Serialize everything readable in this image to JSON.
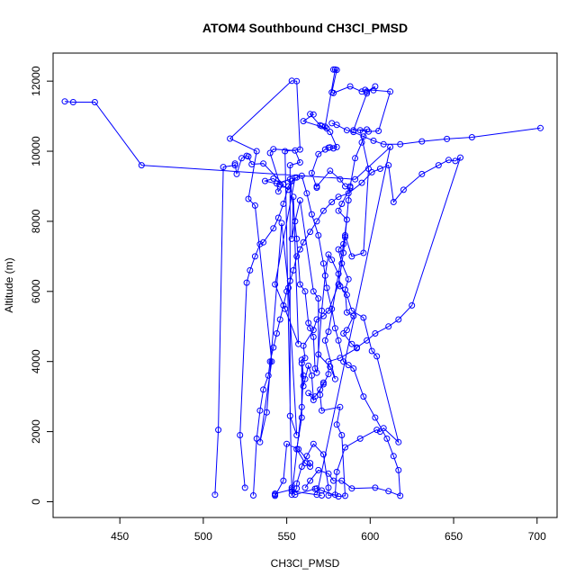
{
  "chart_data": {
    "type": "scatter",
    "title": "ATOM4 Southbound CH3Cl_PMSD",
    "xlabel": "CH3Cl_PMSD",
    "ylabel": "Altitude (m)",
    "xlim": [
      410,
      712
    ],
    "ylim": [
      -450,
      12800
    ],
    "xticks": [
      450,
      500,
      550,
      600,
      650,
      700
    ],
    "yticks": [
      0,
      2000,
      4000,
      6000,
      8000,
      10000,
      12000
    ],
    "grid": false,
    "legend": "none",
    "series_color": "#0000ff",
    "series": [
      {
        "connected": true,
        "points": [
          [
            417,
            11420
          ],
          [
            422,
            11400
          ],
          [
            435,
            11400
          ],
          [
            463,
            9600
          ],
          [
            591,
            9200
          ],
          [
            612,
            10120
          ],
          [
            568,
            200
          ],
          [
            571,
            180
          ],
          [
            553,
            300
          ],
          [
            549,
            10000
          ],
          [
            558,
            10050
          ],
          [
            556,
            12000
          ],
          [
            553,
            12010
          ],
          [
            516,
            10360
          ],
          [
            532,
            10000
          ],
          [
            527,
            8640
          ],
          [
            531,
            8450
          ],
          [
            541,
            4000
          ],
          [
            534,
            1700
          ],
          [
            538,
            2550
          ],
          [
            547,
            7950
          ],
          [
            551,
            6100
          ],
          [
            556,
            1900
          ],
          [
            552,
            2450
          ],
          [
            552,
            9600
          ],
          [
            558,
            9680
          ],
          [
            555,
            10020
          ],
          [
            542,
            10060
          ],
          [
            540,
            9950
          ],
          [
            546,
            9050
          ],
          [
            537,
            9150
          ],
          [
            542,
            9220
          ],
          [
            551,
            8900
          ],
          [
            555,
            9250
          ],
          [
            543,
            6200
          ],
          [
            549,
            5500
          ],
          [
            557,
            4500
          ],
          [
            554,
            8700
          ],
          [
            553,
            7500
          ],
          [
            555,
            8000
          ],
          [
            558,
            8600
          ],
          [
            566,
            6000
          ],
          [
            569,
            5800
          ],
          [
            569,
            4200
          ],
          [
            576,
            3850
          ],
          [
            579,
            3500
          ],
          [
            573,
            4600
          ],
          [
            575,
            4850
          ],
          [
            585,
            7600
          ],
          [
            589,
            7000
          ],
          [
            596,
            7100
          ],
          [
            599,
            9500
          ],
          [
            594,
            10600
          ],
          [
            599,
            10560
          ],
          [
            605,
            10580
          ],
          [
            612,
            11700
          ],
          [
            602,
            11740
          ],
          [
            597,
            11750
          ],
          [
            595,
            11700
          ],
          [
            588,
            11850
          ],
          [
            578,
            11660
          ],
          [
            577,
            11680
          ],
          [
            580,
            12320
          ],
          [
            578,
            12330
          ],
          [
            579,
            12330
          ],
          [
            573,
            10700
          ],
          [
            574,
            10650
          ],
          [
            560,
            10860
          ],
          [
            566,
            11050
          ],
          [
            564,
            11060
          ],
          [
            570,
            10740
          ],
          [
            571,
            10720
          ],
          [
            576,
            10550
          ],
          [
            580,
            10120
          ],
          [
            578,
            10080
          ],
          [
            576,
            10110
          ],
          [
            575,
            10100
          ],
          [
            573,
            10050
          ],
          [
            569,
            9920
          ],
          [
            565,
            9380
          ],
          [
            568,
            8960
          ],
          [
            568,
            9000
          ],
          [
            576,
            9440
          ],
          [
            582,
            9200
          ],
          [
            585,
            9000
          ],
          [
            588,
            8960
          ],
          [
            583,
            8500
          ],
          [
            581,
            8300
          ],
          [
            586,
            8050
          ],
          [
            584,
            7350
          ],
          [
            581,
            7200
          ],
          [
            583,
            6800
          ],
          [
            587,
            6350
          ],
          [
            585,
            6050
          ],
          [
            586,
            5400
          ],
          [
            590,
            5300
          ],
          [
            586,
            4900
          ],
          [
            584,
            4800
          ],
          [
            589,
            4500
          ],
          [
            592,
            4380
          ],
          [
            582,
            4100
          ],
          [
            575,
            4000
          ],
          [
            575,
            3640
          ],
          [
            572,
            3350
          ],
          [
            567,
            3000
          ],
          [
            563,
            3100
          ],
          [
            566,
            2900
          ],
          [
            565,
            3600
          ],
          [
            563,
            3880
          ],
          [
            561,
            3500
          ],
          [
            560,
            3300
          ],
          [
            559,
            3950
          ],
          [
            559,
            2400
          ],
          [
            556,
            1500
          ],
          [
            561,
            1100
          ],
          [
            564,
            1000
          ],
          [
            564,
            1100
          ],
          [
            557,
            1500
          ],
          [
            550,
            1650
          ],
          [
            548,
            600
          ],
          [
            543,
            170
          ],
          [
            543,
            200
          ],
          [
            543,
            230
          ],
          [
            553,
            350
          ],
          [
            553,
            400
          ],
          [
            555,
            200
          ],
          [
            567,
            370
          ],
          [
            568,
            380
          ],
          [
            571,
            320
          ],
          [
            581,
            150
          ],
          [
            585,
            170
          ],
          [
            583,
            1900
          ],
          [
            580,
            2200
          ],
          [
            582,
            2700
          ],
          [
            571,
            2600
          ],
          [
            570,
            3050
          ],
          [
            570,
            3200
          ],
          [
            572,
            3400
          ]
        ]
      },
      {
        "connected": true,
        "points": [
          [
            507,
            200
          ],
          [
            509,
            2050
          ],
          [
            512,
            9550
          ],
          [
            519,
            9600
          ],
          [
            519,
            9650
          ],
          [
            520,
            9350
          ],
          [
            523,
            9800
          ],
          [
            526,
            9870
          ],
          [
            527,
            9850
          ],
          [
            529,
            9630
          ],
          [
            536,
            9650
          ],
          [
            548,
            9050
          ],
          [
            545,
            8850
          ],
          [
            544,
            9080
          ],
          [
            552,
            9200
          ],
          [
            556,
            7500
          ],
          [
            558,
            6200
          ],
          [
            561,
            6000
          ],
          [
            563,
            5100
          ],
          [
            564,
            4950
          ],
          [
            566,
            4700
          ],
          [
            567,
            3800
          ],
          [
            568,
            3680
          ],
          [
            571,
            5450
          ],
          [
            573,
            6450
          ],
          [
            575,
            7050
          ],
          [
            577,
            6900
          ],
          [
            581,
            6500
          ],
          [
            582,
            6150
          ],
          [
            586,
            5900
          ],
          [
            589,
            5450
          ],
          [
            596,
            5250
          ],
          [
            601,
            4300
          ],
          [
            604,
            4150
          ],
          [
            617,
            1700
          ],
          [
            608,
            2100
          ],
          [
            606,
            2000
          ],
          [
            604,
            2050
          ],
          [
            594,
            1800
          ],
          [
            585,
            1550
          ],
          [
            580,
            850
          ],
          [
            579,
            200
          ],
          [
            575,
            180
          ],
          [
            575,
            400
          ],
          [
            572,
            1350
          ],
          [
            566,
            1650
          ],
          [
            562,
            1300
          ],
          [
            559,
            1000
          ],
          [
            556,
            520
          ],
          [
            556,
            380
          ],
          [
            553,
            200
          ],
          [
            559,
            2700
          ],
          [
            560,
            3600
          ],
          [
            559,
            4050
          ],
          [
            561,
            4100
          ],
          [
            560,
            4450
          ],
          [
            566,
            4900
          ],
          [
            568,
            5200
          ],
          [
            572,
            5300
          ],
          [
            575,
            5450
          ],
          [
            581,
            6200
          ],
          [
            584,
            7100
          ],
          [
            585,
            7550
          ],
          [
            587,
            8600
          ],
          [
            588,
            9000
          ],
          [
            591,
            9800
          ],
          [
            595,
            10250
          ],
          [
            598,
            10620
          ],
          [
            590,
            10600
          ],
          [
            598,
            11650
          ],
          [
            603,
            11850
          ],
          [
            598,
            11700
          ]
        ]
      },
      {
        "connected": true,
        "points": [
          [
            525,
            400
          ],
          [
            522,
            1900
          ],
          [
            526,
            6250
          ],
          [
            528,
            6600
          ],
          [
            531,
            7000
          ],
          [
            534,
            7350
          ],
          [
            536,
            7400
          ],
          [
            542,
            7800
          ],
          [
            545,
            8100
          ],
          [
            548,
            8500
          ],
          [
            551,
            9000
          ],
          [
            553,
            9150
          ],
          [
            556,
            9250
          ],
          [
            559,
            9300
          ],
          [
            562,
            8800
          ],
          [
            565,
            8200
          ],
          [
            569,
            7600
          ],
          [
            572,
            6800
          ],
          [
            574,
            6100
          ],
          [
            577,
            5500
          ],
          [
            579,
            4950
          ],
          [
            581,
            4600
          ],
          [
            584,
            4000
          ],
          [
            587,
            3900
          ],
          [
            590,
            3800
          ],
          [
            596,
            3000
          ],
          [
            603,
            2400
          ],
          [
            610,
            1800
          ],
          [
            614,
            1300
          ],
          [
            617,
            900
          ],
          [
            618,
            170
          ],
          [
            611,
            300
          ],
          [
            603,
            400
          ],
          [
            589,
            380
          ],
          [
            583,
            600
          ],
          [
            578,
            600
          ],
          [
            575,
            800
          ],
          [
            569,
            900
          ],
          [
            564,
            600
          ],
          [
            561,
            400
          ]
        ]
      },
      {
        "connected": true,
        "points": [
          [
            530,
            180
          ],
          [
            532,
            1800
          ],
          [
            534,
            2600
          ],
          [
            536,
            3200
          ],
          [
            539,
            3600
          ],
          [
            540,
            4000
          ],
          [
            542,
            4400
          ],
          [
            544,
            4800
          ],
          [
            546,
            5200
          ],
          [
            548,
            5600
          ],
          [
            550,
            6000
          ],
          [
            552,
            6300
          ],
          [
            554,
            6600
          ],
          [
            556,
            7000
          ],
          [
            558,
            7200
          ],
          [
            560,
            7400
          ],
          [
            564,
            7700
          ],
          [
            568,
            8000
          ],
          [
            572,
            8300
          ],
          [
            577,
            8550
          ],
          [
            581,
            8700
          ],
          [
            587,
            8800
          ],
          [
            595,
            9100
          ],
          [
            601,
            9400
          ],
          [
            606,
            9500
          ],
          [
            611,
            9600
          ],
          [
            614,
            8550
          ],
          [
            620,
            8900
          ],
          [
            631,
            9350
          ],
          [
            641,
            9600
          ],
          [
            647,
            9750
          ],
          [
            651,
            9720
          ],
          [
            654,
            9820
          ],
          [
            625,
            5600
          ],
          [
            617,
            5200
          ],
          [
            611,
            5000
          ],
          [
            603,
            4800
          ],
          [
            598,
            4600
          ],
          [
            592,
            4400
          ]
        ]
      },
      {
        "connected": true,
        "points": [
          [
            702,
            10660
          ],
          [
            661,
            10400
          ],
          [
            646,
            10350
          ],
          [
            631,
            10280
          ],
          [
            618,
            10200
          ],
          [
            608,
            10200
          ],
          [
            602,
            10300
          ],
          [
            596,
            10420
          ],
          [
            590,
            10550
          ],
          [
            586,
            10600
          ],
          [
            580,
            10750
          ],
          [
            577,
            10800
          ]
        ]
      }
    ]
  }
}
